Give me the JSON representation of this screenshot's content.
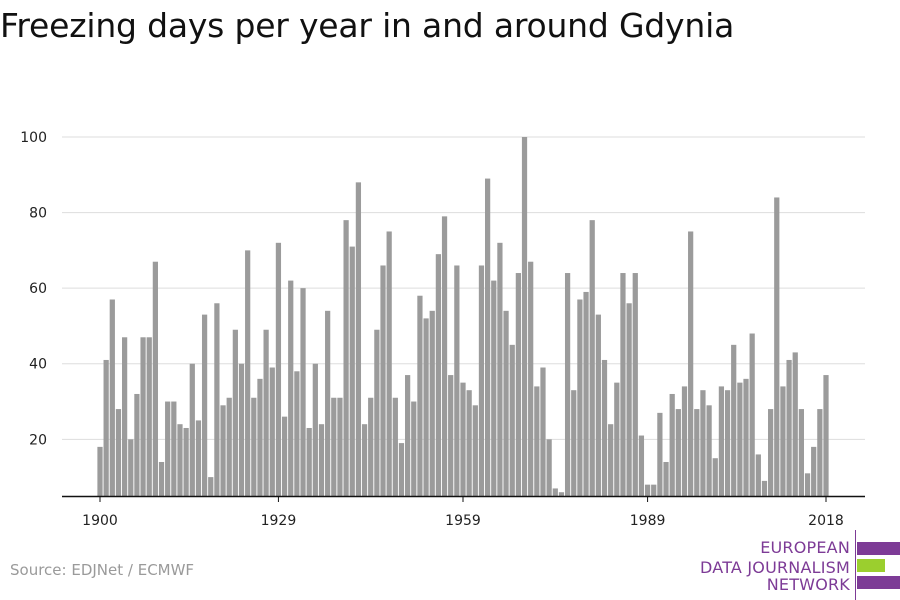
{
  "title": "Freezing days per year in and around Gdynia",
  "source": "Source: EDJNet / ECMWF",
  "logo": {
    "lines": [
      "EUROPEAN",
      "DATA JOURNALISM",
      "NETWORK"
    ],
    "colors": [
      "#7d3b96",
      "#9bcf2e",
      "#7d3b96"
    ]
  },
  "chart_data": {
    "type": "bar",
    "title": "Freezing days per year in and around Gdynia",
    "xlabel": "",
    "ylabel": "",
    "x_start": 1900,
    "x_end": 2018,
    "xticks": [
      1900,
      1929,
      1959,
      1989,
      2018
    ],
    "yticks": [
      20,
      40,
      60,
      80,
      100
    ],
    "ylim": [
      5,
      100
    ],
    "grid": true,
    "bar_color": "#9b9b9b",
    "values": [
      18,
      41,
      57,
      28,
      47,
      20,
      32,
      47,
      47,
      67,
      14,
      30,
      30,
      24,
      23,
      40,
      25,
      53,
      10,
      56,
      29,
      31,
      49,
      40,
      70,
      31,
      36,
      49,
      39,
      72,
      26,
      62,
      38,
      60,
      23,
      40,
      24,
      54,
      31,
      31,
      78,
      71,
      88,
      24,
      31,
      49,
      66,
      75,
      31,
      19,
      37,
      30,
      58,
      52,
      54,
      69,
      79,
      37,
      66,
      35,
      33,
      29,
      66,
      89,
      62,
      72,
      54,
      45,
      64,
      100,
      67,
      34,
      39,
      20,
      7,
      6,
      64,
      33,
      57,
      59,
      78,
      53,
      41,
      24,
      35,
      64,
      56,
      64,
      21,
      8,
      8,
      27,
      14,
      32,
      28,
      34,
      75,
      28,
      33,
      29,
      15,
      34,
      33,
      45,
      35,
      36,
      48,
      16,
      9,
      28,
      84,
      34,
      41,
      43,
      28,
      11,
      18,
      28,
      37
    ]
  }
}
